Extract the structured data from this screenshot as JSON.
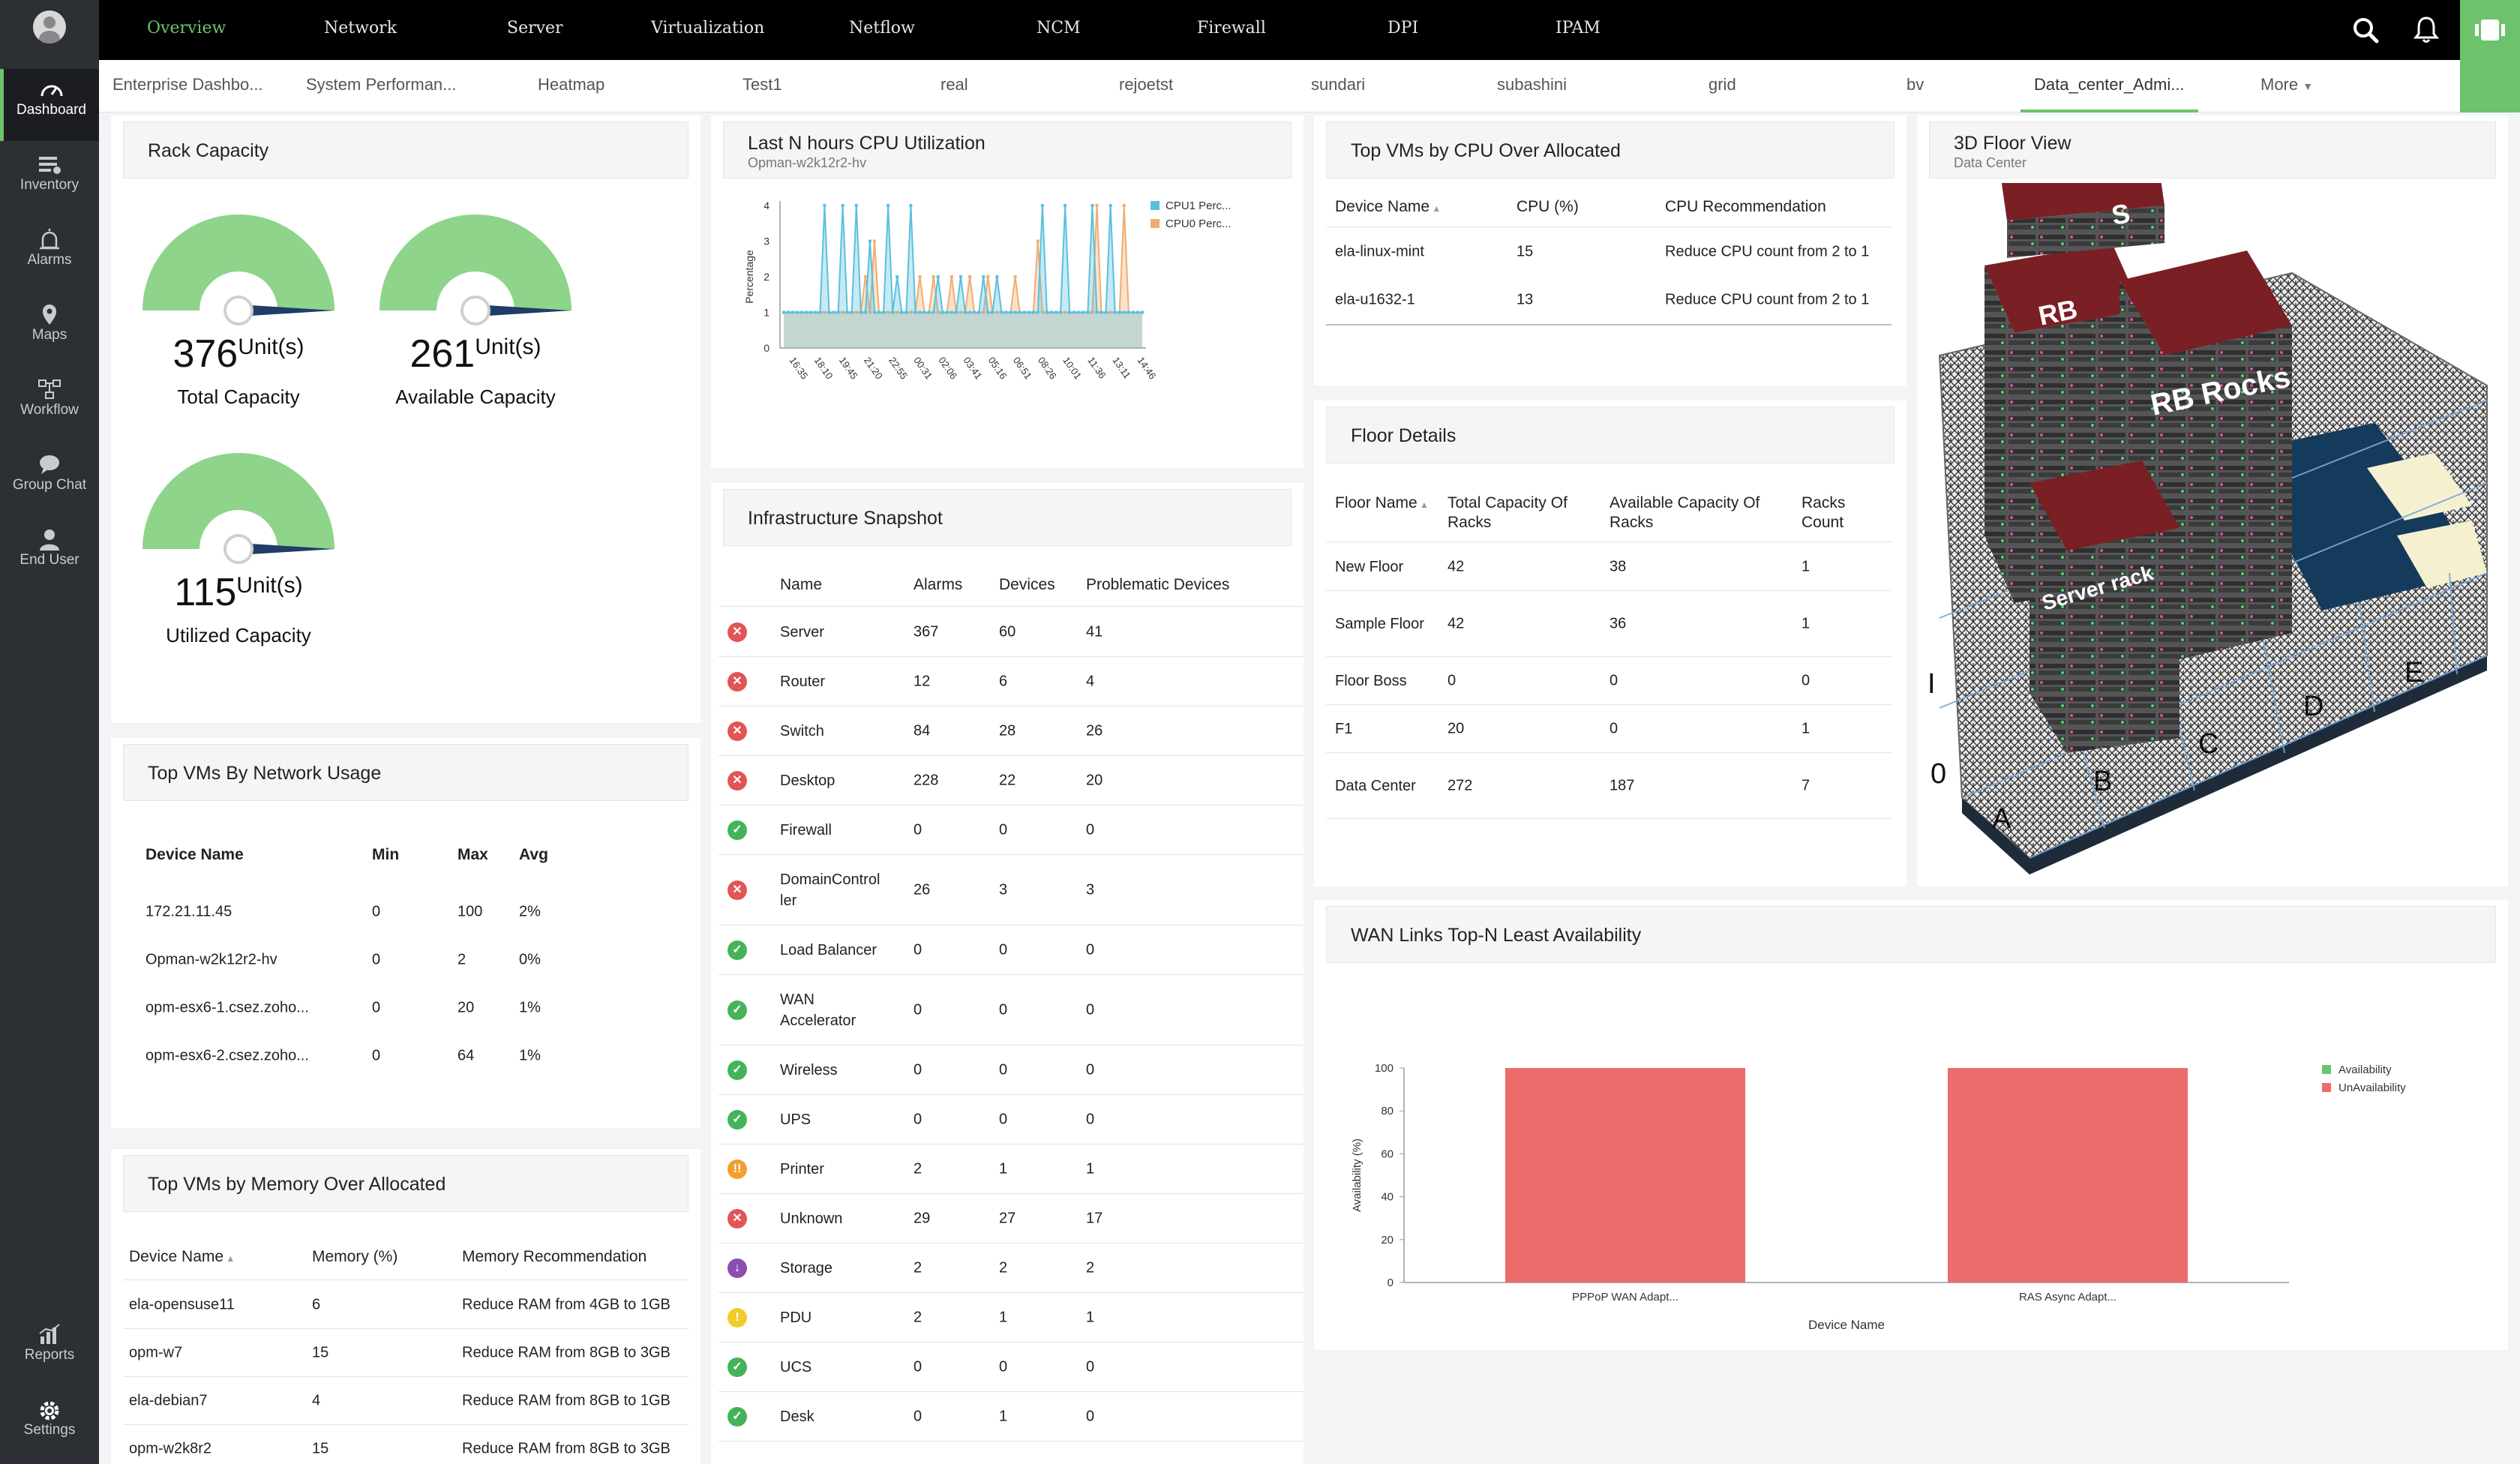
{
  "sidebar": {
    "items": [
      {
        "label": "Dashboard",
        "icon": "gauge-icon",
        "active": true
      },
      {
        "label": "Inventory",
        "icon": "inventory-icon"
      },
      {
        "label": "Alarms",
        "icon": "alarm-icon"
      },
      {
        "label": "Maps",
        "icon": "map-pin-icon"
      },
      {
        "label": "Workflow",
        "icon": "workflow-icon"
      },
      {
        "label": "Group Chat",
        "icon": "chat-icon"
      },
      {
        "label": "End User",
        "icon": "user-icon"
      }
    ],
    "bottom": [
      {
        "label": "Reports",
        "icon": "reports-icon"
      },
      {
        "label": "Settings",
        "icon": "gear-icon"
      }
    ]
  },
  "topnav": {
    "tabs": [
      "Overview",
      "Network",
      "Server",
      "Virtualization",
      "Netflow",
      "NCM",
      "Firewall",
      "DPI",
      "IPAM"
    ],
    "active": "Overview"
  },
  "subtabs": {
    "tabs": [
      "Enterprise Dashbo...",
      "System Performan...",
      "Heatmap",
      "Test1",
      "real",
      "rejoetst",
      "sundari",
      "subashini",
      "grid",
      "bv",
      "Data_center_Admi..."
    ],
    "active": "Data_center_Admi...",
    "more": "More"
  },
  "rack_capacity": {
    "title": "Rack Capacity",
    "gauges": [
      {
        "value": "376",
        "unit": "Unit(s)",
        "label": "Total Capacity"
      },
      {
        "value": "261",
        "unit": "Unit(s)",
        "label": "Available Capacity"
      },
      {
        "value": "115",
        "unit": "Unit(s)",
        "label": "Utilized Capacity"
      }
    ]
  },
  "network_usage": {
    "title": "Top VMs By Network Usage",
    "headers": [
      "Device Name",
      "Min",
      "Max",
      "Avg"
    ],
    "rows": [
      [
        "172.21.11.45",
        "0",
        "100",
        "2%"
      ],
      [
        "Opman-w2k12r2-hv",
        "0",
        "2",
        "0%"
      ],
      [
        "opm-esx6-1.csez.zoho...",
        "0",
        "20",
        "1%"
      ],
      [
        "opm-esx6-2.csez.zoho...",
        "0",
        "64",
        "1%"
      ]
    ]
  },
  "memory_alloc": {
    "title": "Top VMs by Memory Over Allocated",
    "headers": [
      "Device Name",
      "Memory (%)",
      "Memory Recommendation"
    ],
    "rows": [
      [
        "ela-opensuse11",
        "6",
        "Reduce RAM from 4GB to 1GB"
      ],
      [
        "opm-w7",
        "15",
        "Reduce RAM from 8GB to 3GB"
      ],
      [
        "ela-debian7",
        "4",
        "Reduce RAM from 8GB to 1GB"
      ],
      [
        "opm-w2k8r2",
        "15",
        "Reduce RAM from 8GB to 3GB"
      ]
    ]
  },
  "cpu_util": {
    "title": "Last N hours CPU Utilization",
    "subtitle": "Opman-w2k12r2-hv"
  },
  "chart_data": [
    {
      "type": "line",
      "ylabel": "Percentage",
      "ylim": [
        0,
        4
      ],
      "yticks": [
        "0",
        "1",
        "2",
        "3",
        "4"
      ],
      "xticks": [
        "16:35",
        "18:10",
        "19:45",
        "21:20",
        "22:55",
        "00:31",
        "02:06",
        "03:41",
        "05:16",
        "06:51",
        "08:26",
        "10:01",
        "11:36",
        "13:11",
        "14:46"
      ],
      "series": [
        {
          "name": "CPU1 Perc...",
          "color": "#5bc0de",
          "values": [
            1,
            1,
            1,
            1,
            1,
            1,
            1,
            1,
            1,
            4,
            1,
            1,
            1,
            4,
            1,
            1,
            4,
            1,
            1,
            3,
            1,
            1,
            1,
            4,
            1,
            2,
            1,
            1,
            4,
            1,
            1,
            1,
            1,
            1,
            2,
            1,
            1,
            1,
            1,
            2,
            1,
            1,
            1,
            1,
            2,
            1,
            1,
            2,
            1,
            1,
            1,
            1,
            1,
            1,
            1,
            1,
            1,
            4,
            1,
            1,
            1,
            1,
            4,
            1,
            1,
            1,
            1,
            1,
            4,
            1,
            1,
            1,
            4,
            1,
            1,
            1,
            1,
            1,
            1,
            1
          ]
        },
        {
          "name": "CPU0 Perc...",
          "color": "#f0ad70",
          "values": [
            1,
            1,
            1,
            1,
            1,
            1,
            1,
            1,
            1,
            1,
            1,
            1,
            1,
            1,
            1,
            1,
            1,
            1,
            2,
            1,
            3,
            1,
            1,
            1,
            1,
            1,
            1,
            1,
            1,
            1,
            2,
            1,
            1,
            2,
            1,
            1,
            1,
            2,
            1,
            1,
            1,
            2,
            1,
            1,
            1,
            2,
            1,
            1,
            1,
            1,
            1,
            2,
            1,
            1,
            1,
            1,
            3,
            1,
            1,
            1,
            1,
            1,
            1,
            1,
            1,
            1,
            1,
            1,
            1,
            4,
            1,
            1,
            1,
            1,
            1,
            4,
            1,
            1,
            1,
            1
          ]
        }
      ]
    },
    {
      "type": "bar",
      "title": "WAN Links Top-N Least Availability",
      "xlabel": "Device Name",
      "ylabel": "Availability (%)",
      "ylim": [
        0,
        100
      ],
      "yticks": [
        "0",
        "20",
        "40",
        "60",
        "80",
        "100"
      ],
      "categories": [
        "PPPoP WAN Adapt...",
        "RAS Async Adapt..."
      ],
      "series": [
        {
          "name": "Availability",
          "color": "#6cc36c",
          "values": [
            0,
            0
          ]
        },
        {
          "name": "UnAvailability",
          "color": "#ec6b6b",
          "values": [
            100,
            100
          ]
        }
      ]
    }
  ],
  "infra": {
    "title": "Infrastructure Snapshot",
    "headers": [
      "Name",
      "Alarms",
      "Devices",
      "Problematic Devices"
    ],
    "rows": [
      {
        "status": "red",
        "cells": [
          "Server",
          "367",
          "60",
          "41"
        ]
      },
      {
        "status": "red",
        "cells": [
          "Router",
          "12",
          "6",
          "4"
        ]
      },
      {
        "status": "red",
        "cells": [
          "Switch",
          "84",
          "28",
          "26"
        ]
      },
      {
        "status": "red",
        "cells": [
          "Desktop",
          "228",
          "22",
          "20"
        ]
      },
      {
        "status": "green",
        "cells": [
          "Firewall",
          "0",
          "0",
          "0"
        ]
      },
      {
        "status": "red",
        "cells": [
          "DomainControl ler",
          "26",
          "3",
          "3"
        ]
      },
      {
        "status": "green",
        "cells": [
          "Load Balancer",
          "0",
          "0",
          "0"
        ]
      },
      {
        "status": "green",
        "cells": [
          "WAN Accelerator",
          "0",
          "0",
          "0"
        ]
      },
      {
        "status": "green",
        "cells": [
          "Wireless",
          "0",
          "0",
          "0"
        ]
      },
      {
        "status": "green",
        "cells": [
          "UPS",
          "0",
          "0",
          "0"
        ]
      },
      {
        "status": "orange",
        "cells": [
          "Printer",
          "2",
          "1",
          "1"
        ]
      },
      {
        "status": "red",
        "cells": [
          "Unknown",
          "29",
          "27",
          "17"
        ]
      },
      {
        "status": "purple",
        "cells": [
          "Storage",
          "2",
          "2",
          "2"
        ]
      },
      {
        "status": "yellow",
        "cells": [
          "PDU",
          "2",
          "1",
          "1"
        ]
      },
      {
        "status": "green",
        "cells": [
          "UCS",
          "0",
          "0",
          "0"
        ]
      },
      {
        "status": "green",
        "cells": [
          "Desk",
          "0",
          "1",
          "0"
        ]
      }
    ]
  },
  "cpu_alloc": {
    "title": "Top VMs by CPU Over Allocated",
    "headers": [
      "Device Name",
      "CPU (%)",
      "CPU Recommendation"
    ],
    "rows": [
      [
        "ela-linux-mint",
        "15",
        "Reduce CPU count from 2 to 1"
      ],
      [
        "ela-u1632-1",
        "13",
        "Reduce CPU count from 2 to 1"
      ]
    ]
  },
  "floor": {
    "title": "Floor Details",
    "headers": [
      "Floor Name",
      "Total Capacity Of Racks",
      "Available Capacity Of Racks",
      "Racks Count"
    ],
    "rows": [
      [
        "New Floor",
        "42",
        "38",
        "1"
      ],
      [
        "Sample Floor",
        "42",
        "36",
        "1"
      ],
      [
        "Floor Boss",
        "0",
        "0",
        "0"
      ],
      [
        "F1",
        "20",
        "0",
        "1"
      ],
      [
        "Data Center",
        "272",
        "187",
        "7"
      ]
    ]
  },
  "floor3d": {
    "title": "3D Floor View",
    "subtitle": "Data Center",
    "labels": [
      "RB",
      "RB Rocks",
      "Server rack",
      "S"
    ],
    "axis": [
      "A",
      "B",
      "C",
      "D",
      "E"
    ],
    "axis_left": [
      "0",
      "I"
    ]
  }
}
